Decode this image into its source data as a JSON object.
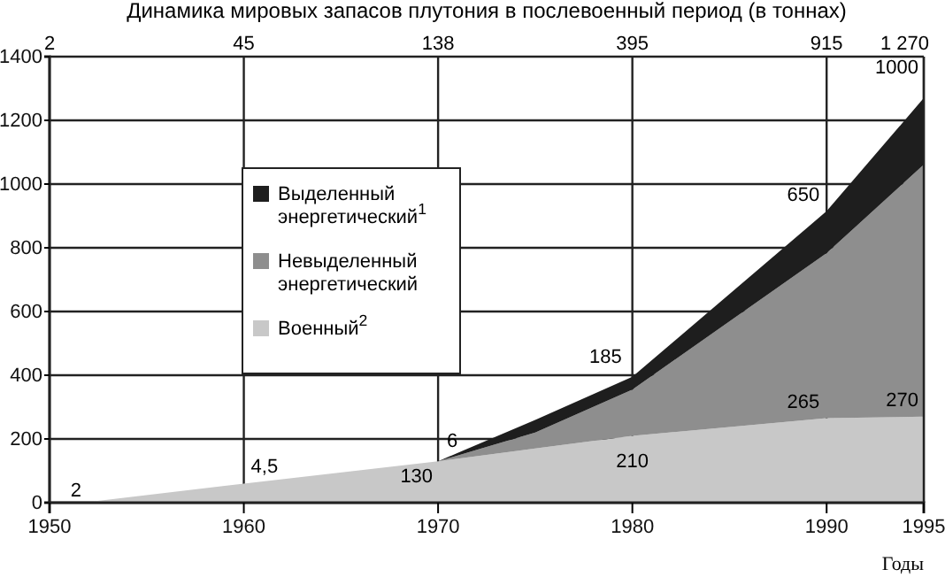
{
  "chart_data": {
    "type": "area",
    "stacked": true,
    "title": "Динамика мировых запасов плутония в послевоенный период (в тоннах)",
    "xlabel": "Годы",
    "x": [
      1952,
      1960,
      1970,
      1975,
      1980,
      1990,
      1995
    ],
    "series": [
      {
        "name": "Военный$^{2}$",
        "color": "#c8c8c8",
        "values": [
          2,
          60,
          130,
          170,
          210,
          265,
          270
        ]
      },
      {
        "name": "Невыделенный энергетический",
        "color": "#8e8e8e",
        "values": [
          0,
          0,
          0,
          50,
          145,
          518,
          791
        ]
      },
      {
        "name": "Выделенный энергетический$^{1}$",
        "color": "#1e1e1e",
        "values": [
          0,
          0,
          0,
          40,
          40,
          132,
          209
        ]
      }
    ],
    "xlim": [
      1950,
      1995
    ],
    "xticks": [
      1950,
      1960,
      1970,
      1980,
      1990,
      1995
    ],
    "ylim": [
      0,
      1400
    ],
    "yticks": [
      0,
      200,
      400,
      600,
      800,
      1000,
      1200,
      1400
    ],
    "grid": true,
    "legend": "left",
    "annotations": [
      "2",
      "45",
      "138",
      "395",
      "915",
      "1 270",
      {
        "text": "2",
        "x": 1952,
        "y": 2
      },
      {
        "text": "4,5",
        "x": 1960,
        "y": 60
      },
      {
        "text": "130",
        "x": 1970,
        "y": 130
      },
      {
        "text": "6",
        "x": 1970,
        "y": 130
      },
      {
        "text": "210",
        "x": 1980,
        "y": 210
      },
      {
        "text": "185",
        "x": 1980,
        "y": 395
      },
      {
        "text": "265",
        "x": 1990,
        "y": 265
      },
      {
        "text": "650",
        "x": 1990,
        "y": 915
      },
      {
        "text": "270",
        "x": 1995,
        "y": 270
      },
      {
        "text": "1000",
        "x": 1995,
        "y": 1270
      }
    ]
  }
}
